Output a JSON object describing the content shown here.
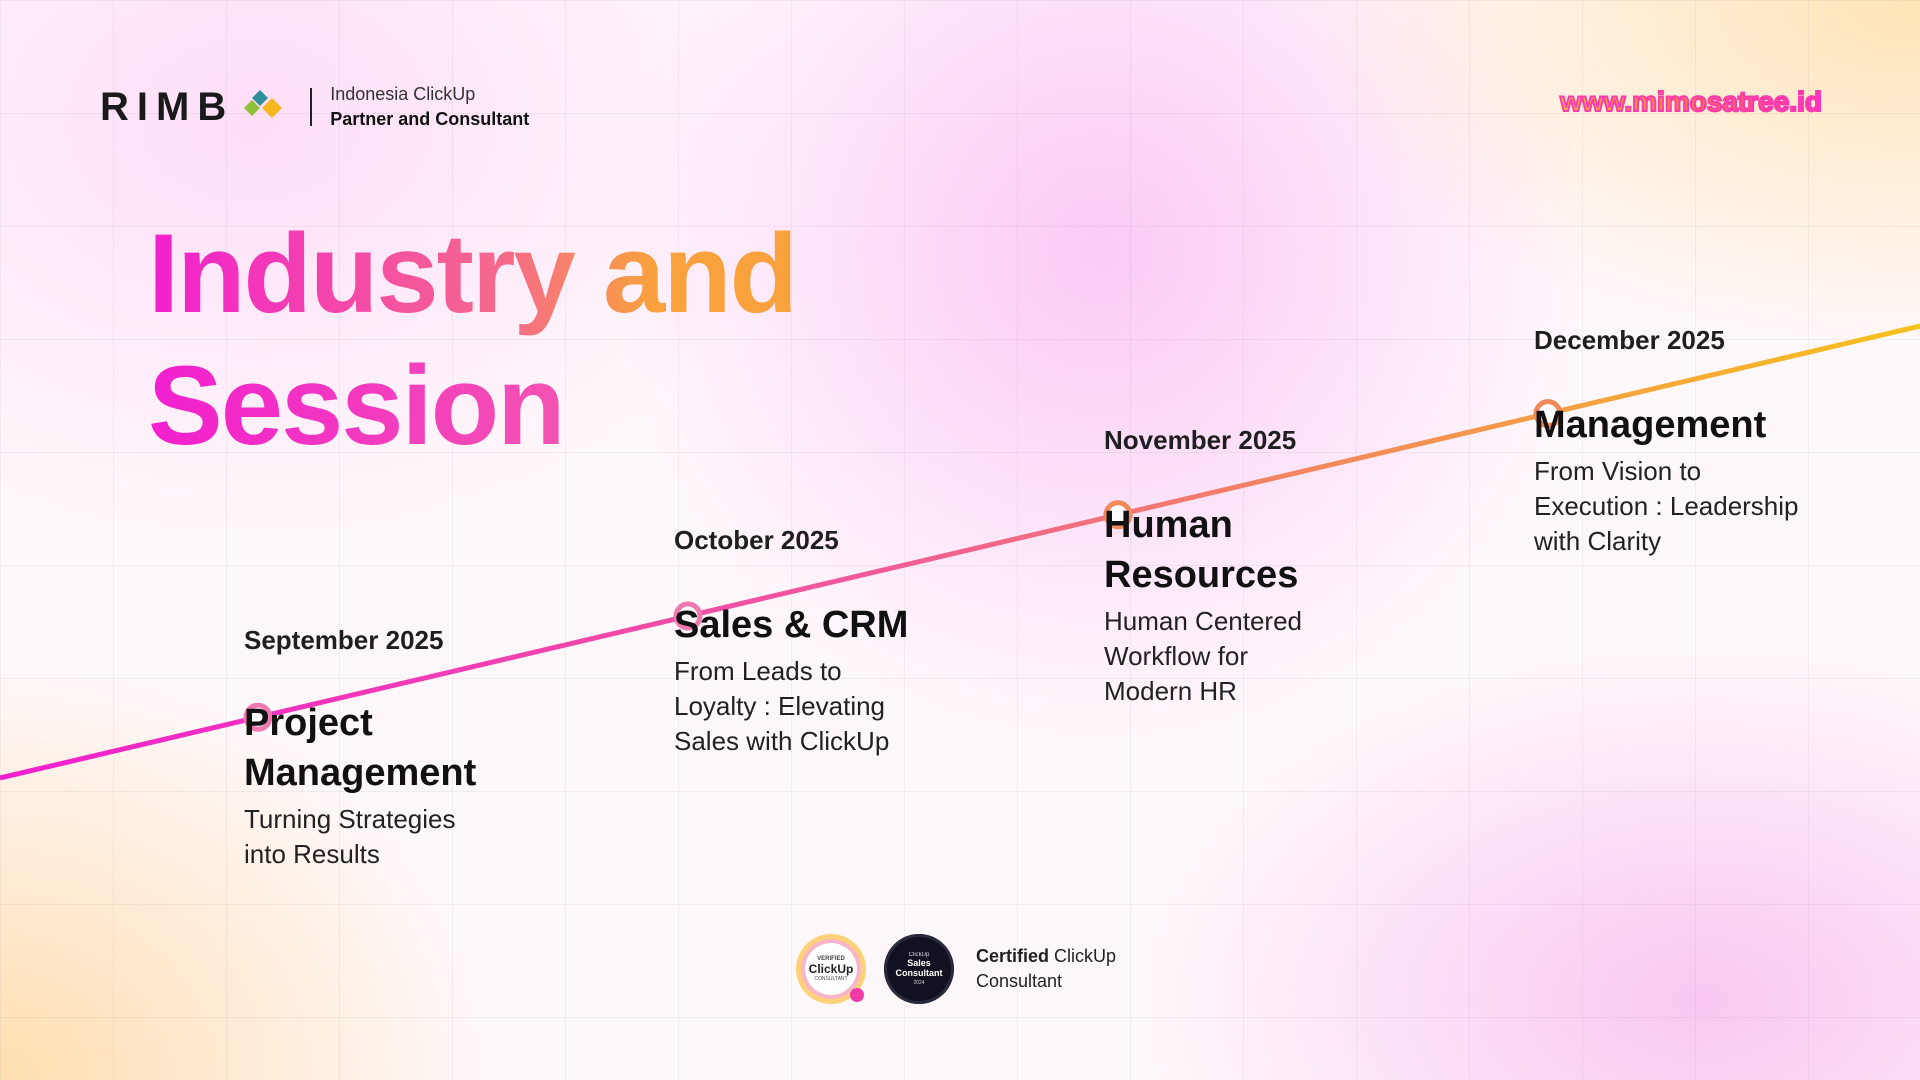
{
  "header": {
    "logo_word": "RIMB",
    "tagline_1": "Indonesia ClickUp",
    "tagline_2": "Partner and Consultant",
    "website": "www.mimosatree.id"
  },
  "title": {
    "line1a": "Industry",
    "line1b": "and",
    "line2": "Session"
  },
  "colors": {
    "pink": "#f21fcf",
    "orange": "#f9a13d",
    "yellow": "#f7c21b"
  },
  "timeline": [
    {
      "date": "September 2025",
      "title": "Project Management",
      "title_lines": [
        "Project",
        "Management"
      ],
      "desc_lines": [
        "Turning Strategies",
        "into Results"
      ]
    },
    {
      "date": "October 2025",
      "title": "Sales & CRM",
      "title_lines": [
        "Sales & CRM"
      ],
      "desc_lines": [
        "From Leads to",
        "Loyalty : Elevating",
        "Sales with ClickUp"
      ]
    },
    {
      "date": "November 2025",
      "title": "Human Resources",
      "title_lines": [
        "Human",
        "Resources"
      ],
      "desc_lines": [
        "Human Centered",
        "Workflow for",
        "Modern HR"
      ]
    },
    {
      "date": "December 2025",
      "title": "Management",
      "title_lines": [
        "Management"
      ],
      "desc_lines": [
        "From Vision to",
        "Execution : Leadership",
        "with Clarity"
      ]
    }
  ],
  "footer": {
    "badge1_top": "VERIFIED",
    "badge1_main": "ClickUp",
    "badge1_bottom": "CONSULTANT",
    "badge2_top": "ClickUp",
    "badge2_main": "Sales Consultant",
    "badge2_bottom": "2024",
    "cert_bold": "Certified",
    "cert_rest": "ClickUp",
    "cert_line2": "Consultant"
  }
}
